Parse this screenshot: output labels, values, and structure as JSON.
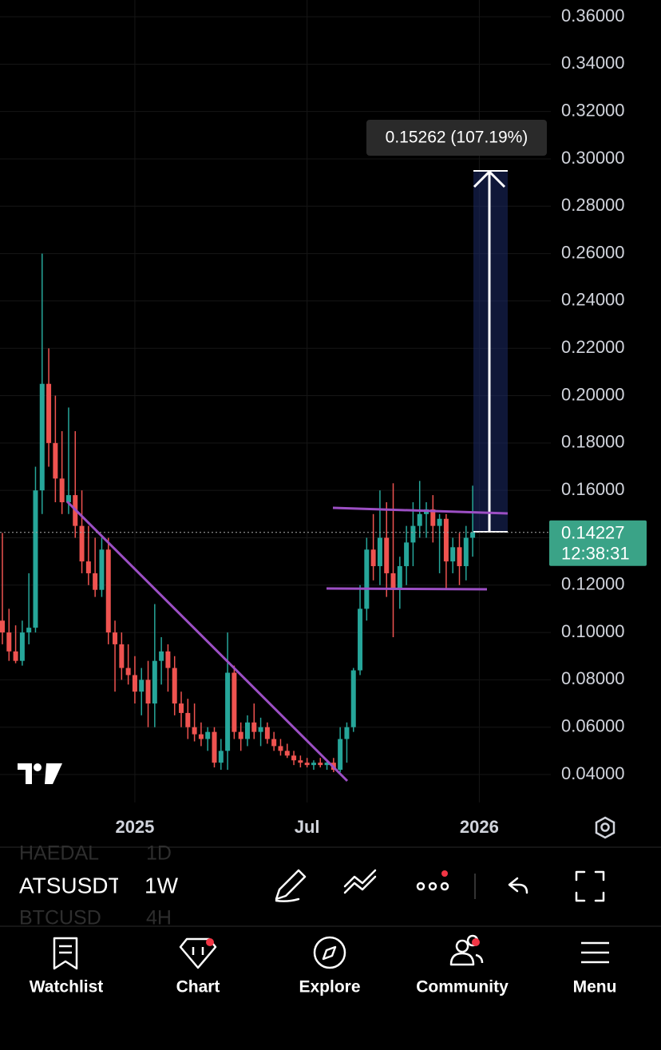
{
  "chart_data": {
    "type": "candlestick",
    "open": [
      0.105,
      0.1,
      0.092,
      0.088,
      0.1,
      0.102,
      0.16,
      0.205,
      0.18,
      0.165,
      0.155,
      0.158,
      0.145,
      0.13,
      0.125,
      0.118,
      0.135,
      0.1,
      0.095,
      0.085,
      0.082,
      0.075,
      0.08,
      0.07,
      0.088,
      0.092,
      0.085,
      0.07,
      0.066,
      0.06,
      0.057,
      0.055,
      0.058,
      0.045,
      0.05,
      0.083,
      0.058,
      0.055,
      0.062,
      0.058,
      0.06,
      0.055,
      0.052,
      0.05,
      0.048,
      0.046,
      0.045,
      0.044,
      0.045,
      0.044,
      0.045,
      0.042,
      0.055,
      0.06,
      0.084,
      0.11,
      0.135,
      0.128,
      0.14,
      0.125,
      0.118,
      0.128,
      0.138,
      0.145,
      0.15,
      0.152,
      0.145,
      0.148,
      0.13,
      0.136,
      0.128,
      0.14
    ],
    "high": [
      0.142,
      0.11,
      0.103,
      0.105,
      0.125,
      0.17,
      0.26,
      0.22,
      0.2,
      0.185,
      0.195,
      0.185,
      0.16,
      0.145,
      0.14,
      0.14,
      0.14,
      0.105,
      0.1,
      0.095,
      0.09,
      0.085,
      0.088,
      0.112,
      0.098,
      0.095,
      0.09,
      0.075,
      0.072,
      0.07,
      0.062,
      0.06,
      0.06,
      0.055,
      0.1,
      0.086,
      0.062,
      0.065,
      0.07,
      0.064,
      0.062,
      0.058,
      0.055,
      0.053,
      0.05,
      0.048,
      0.047,
      0.046,
      0.047,
      0.046,
      0.047,
      0.06,
      0.062,
      0.085,
      0.12,
      0.14,
      0.15,
      0.16,
      0.155,
      0.163,
      0.132,
      0.145,
      0.155,
      0.164,
      0.155,
      0.158,
      0.15,
      0.15,
      0.14,
      0.142,
      0.145,
      0.162
    ],
    "low": [
      0.095,
      0.088,
      0.087,
      0.086,
      0.095,
      0.1,
      0.15,
      0.17,
      0.155,
      0.15,
      0.15,
      0.14,
      0.125,
      0.12,
      0.115,
      0.115,
      0.095,
      0.075,
      0.08,
      0.078,
      0.07,
      0.065,
      0.06,
      0.06,
      0.078,
      0.075,
      0.065,
      0.06,
      0.055,
      0.054,
      0.052,
      0.05,
      0.043,
      0.042,
      0.042,
      0.055,
      0.05,
      0.052,
      0.055,
      0.052,
      0.053,
      0.05,
      0.048,
      0.047,
      0.044,
      0.043,
      0.043,
      0.042,
      0.043,
      0.042,
      0.041,
      0.041,
      0.045,
      0.058,
      0.082,
      0.105,
      0.122,
      0.12,
      0.115,
      0.098,
      0.11,
      0.12,
      0.128,
      0.14,
      0.14,
      0.138,
      0.125,
      0.118,
      0.125,
      0.12,
      0.122,
      0.132
    ],
    "close": [
      0.1,
      0.092,
      0.088,
      0.1,
      0.102,
      0.16,
      0.205,
      0.18,
      0.165,
      0.155,
      0.158,
      0.145,
      0.13,
      0.125,
      0.118,
      0.135,
      0.1,
      0.095,
      0.085,
      0.082,
      0.075,
      0.08,
      0.07,
      0.088,
      0.092,
      0.085,
      0.07,
      0.066,
      0.06,
      0.057,
      0.055,
      0.058,
      0.045,
      0.05,
      0.083,
      0.058,
      0.055,
      0.062,
      0.058,
      0.06,
      0.055,
      0.052,
      0.05,
      0.048,
      0.046,
      0.045,
      0.044,
      0.045,
      0.044,
      0.045,
      0.042,
      0.055,
      0.06,
      0.084,
      0.11,
      0.135,
      0.128,
      0.14,
      0.125,
      0.118,
      0.128,
      0.138,
      0.145,
      0.15,
      0.152,
      0.145,
      0.148,
      0.13,
      0.136,
      0.128,
      0.14,
      0.14227
    ],
    "up_color": "#26a69a",
    "down_color": "#ef5350",
    "xlim": [
      -0.36,
      82.8
    ],
    "xticks": [
      {
        "value": 20,
        "label": "2025"
      },
      {
        "value": 46,
        "label": "Jul"
      },
      {
        "value": 72,
        "label": "2026"
      }
    ],
    "ylim": [
      0.0282,
      0.3671
    ],
    "yticks": [
      {
        "value": 0.04,
        "label": "0.04000"
      },
      {
        "value": 0.06,
        "label": "0.06000"
      },
      {
        "value": 0.08,
        "label": "0.08000"
      },
      {
        "value": 0.1,
        "label": "0.10000"
      },
      {
        "value": 0.12,
        "label": "0.12000"
      },
      {
        "value": 0.14,
        "label": "0.14000"
      },
      {
        "value": 0.16,
        "label": "0.16000"
      },
      {
        "value": 0.18,
        "label": "0.18000"
      },
      {
        "value": 0.2,
        "label": "0.20000"
      },
      {
        "value": 0.22,
        "label": "0.22000"
      },
      {
        "value": 0.24,
        "label": "0.24000"
      },
      {
        "value": 0.26,
        "label": "0.26000"
      },
      {
        "value": 0.28,
        "label": "0.28000"
      },
      {
        "value": 0.3,
        "label": "0.30000"
      },
      {
        "value": 0.32,
        "label": "0.32000"
      },
      {
        "value": 0.34,
        "label": "0.34000"
      },
      {
        "value": 0.36,
        "label": "0.36000"
      }
    ],
    "grid": true,
    "last_price": 0.14227,
    "countdown": "12:38:31",
    "measure_label": "0.15262 (107.19%)"
  },
  "toolbar": {
    "symbols": [
      {
        "symbol": "HAEDAL",
        "interval": "1D"
      },
      {
        "symbol": "ATSUSDT",
        "interval": "1W"
      },
      {
        "symbol": "BTCUSD",
        "interval": "4H"
      }
    ]
  },
  "tabs": [
    "Watchlist",
    "Chart",
    "Explore",
    "Community",
    "Menu"
  ]
}
